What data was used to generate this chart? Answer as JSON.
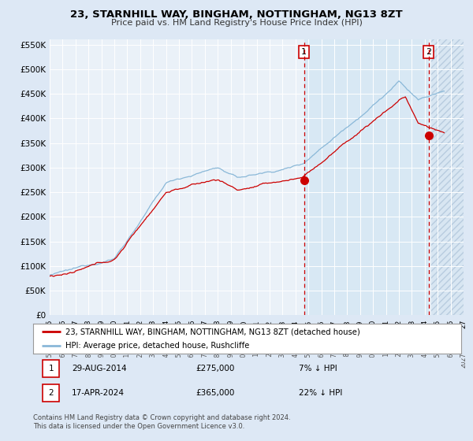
{
  "title": "23, STARNHILL WAY, BINGHAM, NOTTINGHAM, NG13 8ZT",
  "subtitle": "Price paid vs. HM Land Registry's House Price Index (HPI)",
  "legend_label_red": "23, STARNHILL WAY, BINGHAM, NOTTINGHAM, NG13 8ZT (detached house)",
  "legend_label_blue": "HPI: Average price, detached house, Rushcliffe",
  "transaction1_date": "29-AUG-2014",
  "transaction1_price": 275000,
  "transaction1_pct": "7%",
  "transaction2_date": "17-APR-2024",
  "transaction2_price": 365000,
  "transaction2_pct": "22%",
  "footnote": "Contains HM Land Registry data © Crown copyright and database right 2024.\nThis data is licensed under the Open Government Licence v3.0.",
  "ylim": [
    0,
    560000
  ],
  "yticks": [
    0,
    50000,
    100000,
    150000,
    200000,
    250000,
    300000,
    350000,
    400000,
    450000,
    500000,
    550000
  ],
  "year_start": 1995,
  "year_end": 2027,
  "bg_color": "#dde8f5",
  "plot_bg": "#eaf1f8",
  "hatch_color": "#c8d8ea",
  "red_color": "#cc0000",
  "blue_color": "#8ab8d8",
  "grid_color": "#ffffff",
  "shade_color": "#d8e8f4",
  "marker1_year": 2014.66,
  "marker2_year": 2024.29,
  "transaction1_price_val": 275000,
  "transaction2_price_val": 365000
}
